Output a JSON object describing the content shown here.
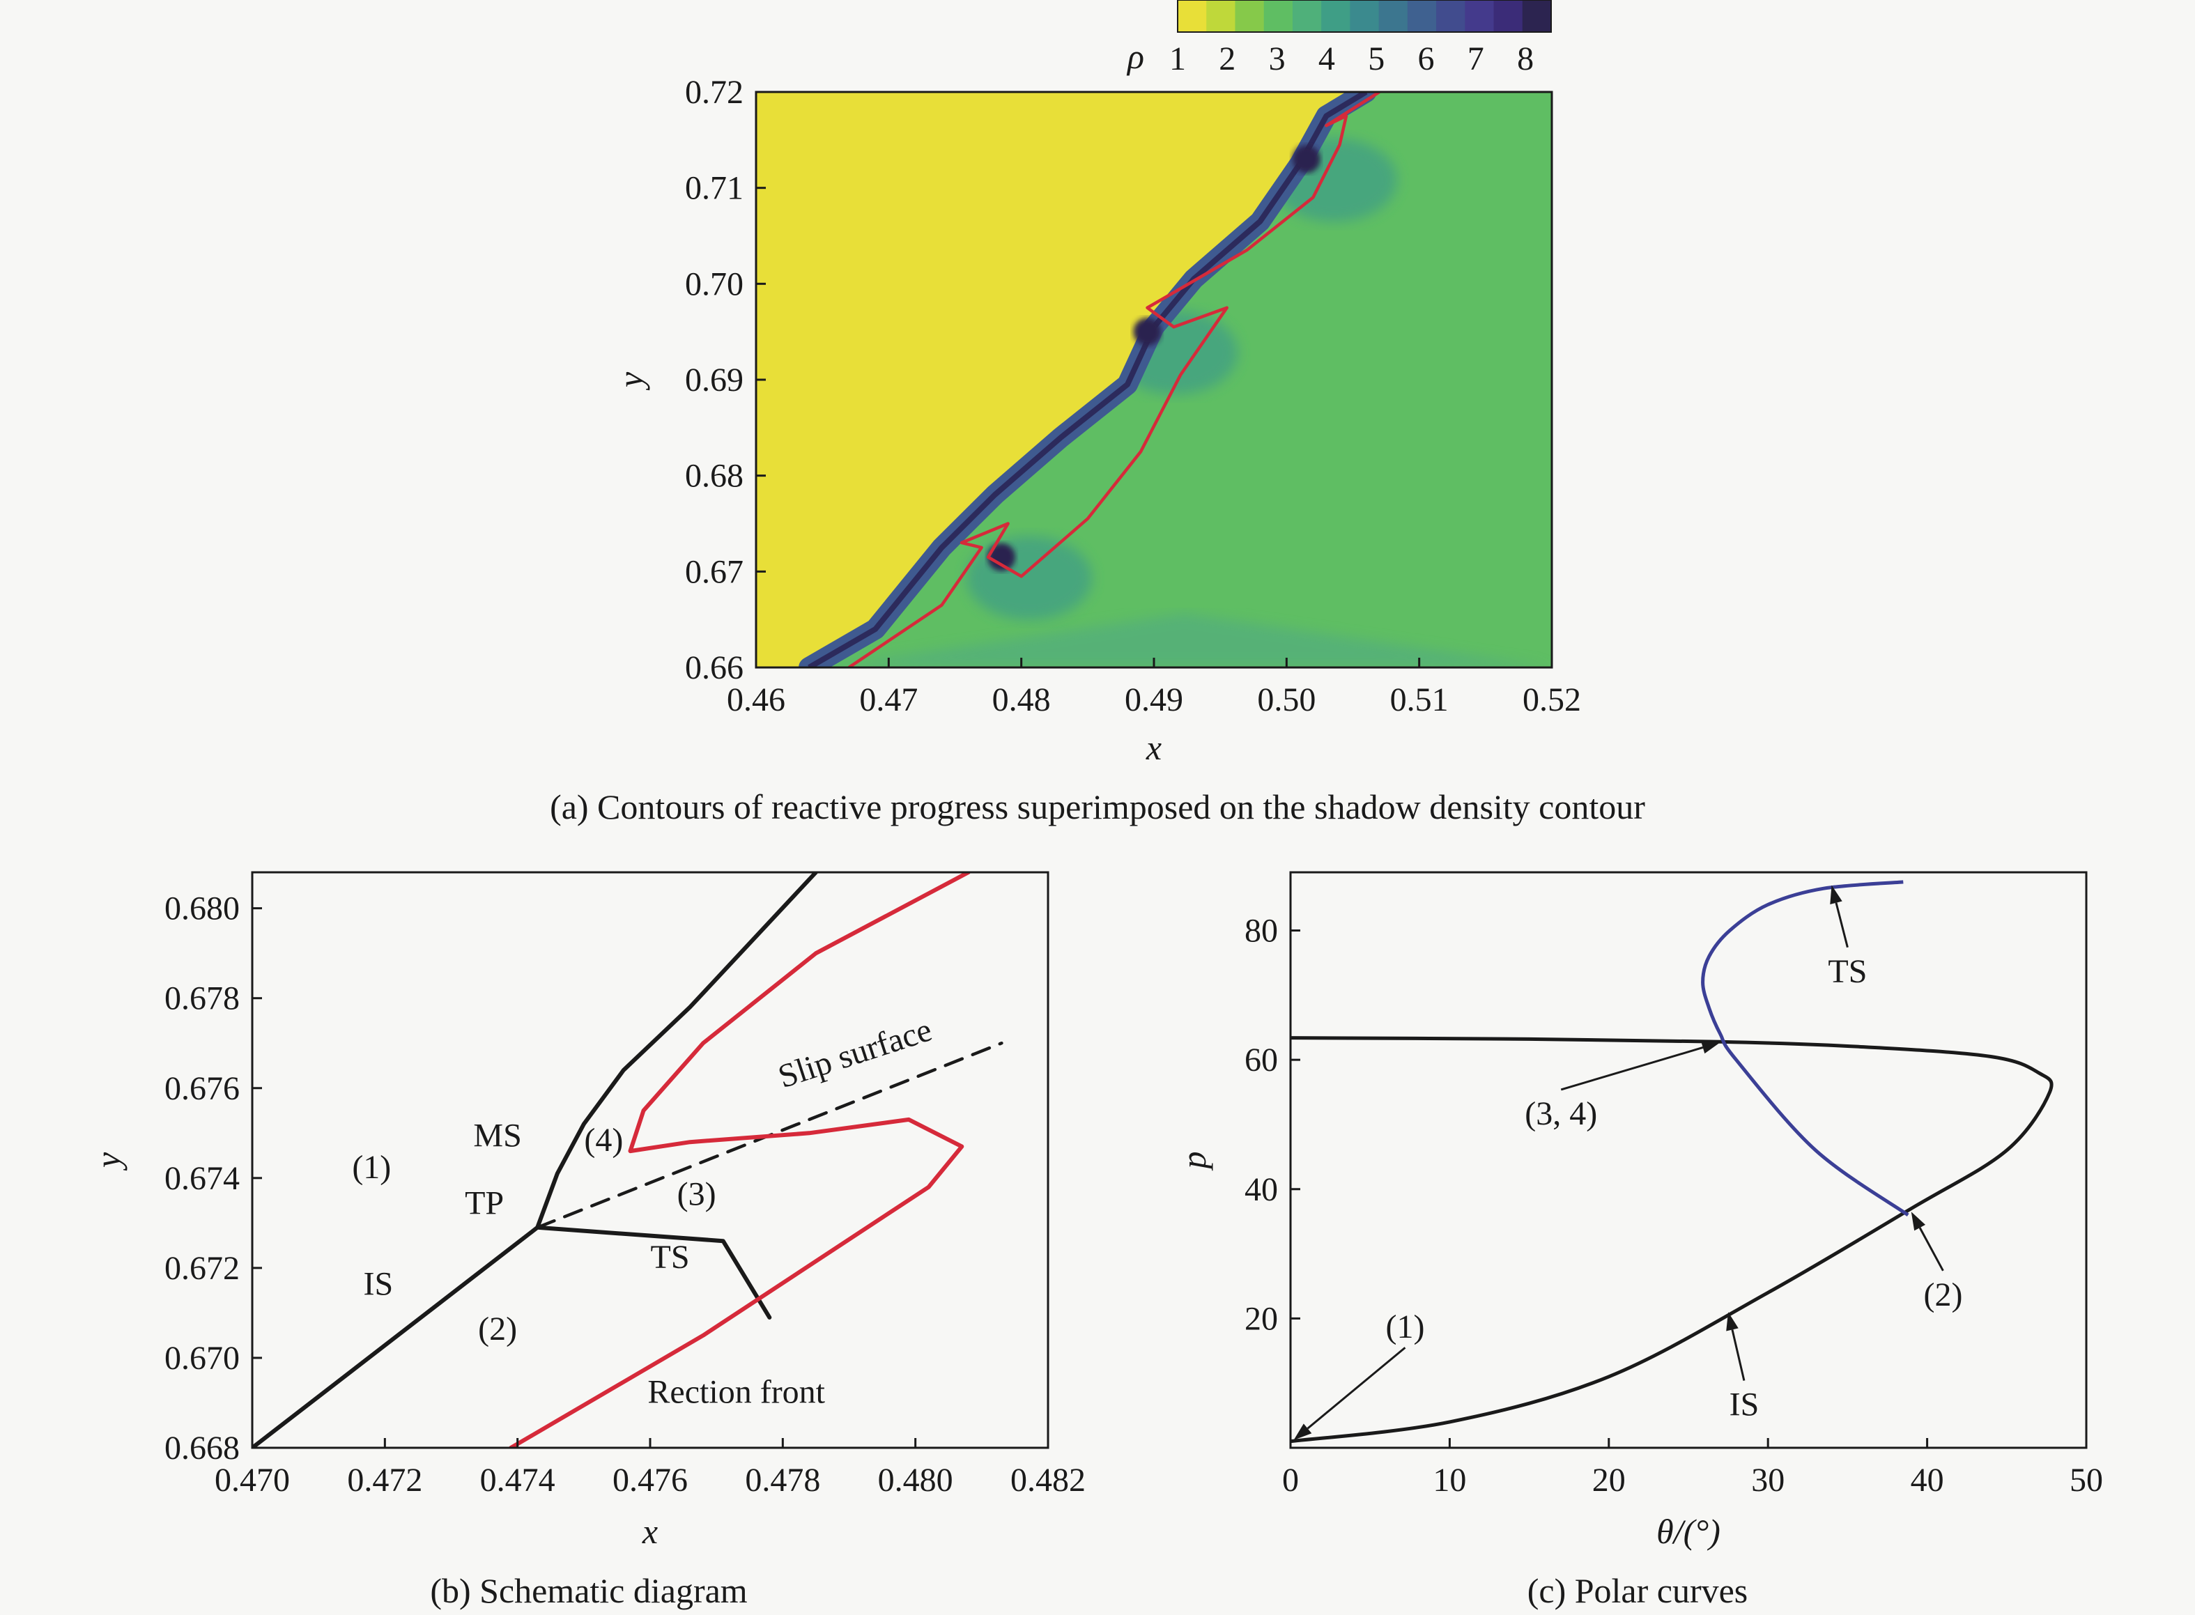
{
  "colorbar": {
    "symbol": "ρ",
    "ticks": [
      "1",
      "2",
      "3",
      "4",
      "5",
      "6",
      "7",
      "8"
    ],
    "colors": [
      "#e8df38",
      "#bfd83a",
      "#86c94a",
      "#5fbe63",
      "#4fb07a",
      "#3f9e86",
      "#3b8a8e",
      "#3c768f",
      "#3f6190",
      "#414c8e",
      "#443a8c",
      "#3b2c78",
      "#2c2450"
    ]
  },
  "chart_data": [
    {
      "type": "heatmap",
      "title": "",
      "caption": "(a) Contours of reactive progress superimposed on the shadow density contour",
      "xlabel": "x",
      "ylabel": "y",
      "xlim": [
        0.46,
        0.52
      ],
      "ylim": [
        0.66,
        0.72
      ],
      "xticks": [
        "0.46",
        "0.47",
        "0.48",
        "0.49",
        "0.50",
        "0.51",
        "0.52"
      ],
      "yticks": [
        "0.66",
        "0.67",
        "0.68",
        "0.69",
        "0.70",
        "0.71",
        "0.72"
      ],
      "colors": {
        "unburnt": "#e8df38",
        "burnt": "#5fbe63",
        "shock": "#414c8e",
        "reaction": "#d62a3a"
      },
      "shock_front": [
        [
          0.464,
          0.66
        ],
        [
          0.469,
          0.664
        ],
        [
          0.474,
          0.6725
        ],
        [
          0.478,
          0.678
        ],
        [
          0.483,
          0.684
        ],
        [
          0.488,
          0.6895
        ],
        [
          0.49,
          0.6955
        ],
        [
          0.493,
          0.7005
        ],
        [
          0.498,
          0.7065
        ],
        [
          0.501,
          0.7125
        ],
        [
          0.503,
          0.7175
        ],
        [
          0.506,
          0.72
        ]
      ],
      "reaction_front": [
        [
          0.467,
          0.66
        ],
        [
          0.474,
          0.6665
        ],
        [
          0.477,
          0.6725
        ],
        [
          0.4755,
          0.673
        ],
        [
          0.479,
          0.675
        ],
        [
          0.4775,
          0.6715
        ],
        [
          0.48,
          0.6695
        ],
        [
          0.485,
          0.6755
        ],
        [
          0.489,
          0.6825
        ],
        [
          0.492,
          0.6905
        ],
        [
          0.4955,
          0.6975
        ],
        [
          0.4915,
          0.6955
        ],
        [
          0.4895,
          0.6975
        ],
        [
          0.497,
          0.7035
        ],
        [
          0.502,
          0.709
        ],
        [
          0.504,
          0.7145
        ],
        [
          0.5045,
          0.7175
        ],
        [
          0.503,
          0.7165
        ],
        [
          0.507,
          0.72
        ]
      ],
      "triple_points": [
        [
          0.4785,
          0.6715
        ],
        [
          0.4895,
          0.695
        ],
        [
          0.5015,
          0.713
        ]
      ]
    },
    {
      "type": "line",
      "title": "",
      "caption": "(b) Schematic diagram",
      "xlabel": "x",
      "ylabel": "y",
      "xlim": [
        0.47,
        0.482
      ],
      "ylim": [
        0.668,
        0.6808
      ],
      "xticks": [
        "0.470",
        "0.472",
        "0.474",
        "0.476",
        "0.478",
        "0.480",
        "0.482"
      ],
      "yticks": [
        "0.668",
        "0.670",
        "0.672",
        "0.674",
        "0.676",
        "0.678",
        "0.680"
      ],
      "series": [
        {
          "key": "IS",
          "color": "#1a1a1a",
          "dash": false,
          "points": [
            [
              0.47,
              0.668
            ],
            [
              0.4743,
              0.6729
            ]
          ]
        },
        {
          "key": "MS",
          "color": "#1a1a1a",
          "dash": false,
          "points": [
            [
              0.4743,
              0.6729
            ],
            [
              0.4746,
              0.6741
            ],
            [
              0.475,
              0.6752
            ],
            [
              0.4756,
              0.6764
            ],
            [
              0.4766,
              0.6778
            ],
            [
              0.4785,
              0.6808
            ]
          ]
        },
        {
          "key": "TS",
          "color": "#1a1a1a",
          "dash": false,
          "points": [
            [
              0.4743,
              0.6729
            ],
            [
              0.4771,
              0.6726
            ],
            [
              0.4778,
              0.6709
            ]
          ]
        },
        {
          "key": "slip",
          "color": "#1a1a1a",
          "dash": true,
          "points": [
            [
              0.4743,
              0.6729
            ],
            [
              0.4813,
              0.677
            ]
          ]
        },
        {
          "key": "reaction",
          "color": "#d62a3a",
          "dash": false,
          "points": [
            [
              0.4739,
              0.668
            ],
            [
              0.4768,
              0.6705
            ],
            [
              0.4802,
              0.6738
            ],
            [
              0.4807,
              0.6747
            ],
            [
              0.4799,
              0.6753
            ],
            [
              0.4784,
              0.675
            ],
            [
              0.4766,
              0.6748
            ],
            [
              0.4757,
              0.6746
            ],
            [
              0.4759,
              0.6755
            ],
            [
              0.4768,
              0.677
            ],
            [
              0.4785,
              0.679
            ],
            [
              0.4808,
              0.6808
            ]
          ]
        }
      ],
      "annotations": [
        {
          "text": "(1)",
          "x": 0.4718,
          "y": 0.674
        },
        {
          "text": "MS",
          "x": 0.4737,
          "y": 0.6747
        },
        {
          "text": "(4)",
          "x": 0.4753,
          "y": 0.6746
        },
        {
          "text": "(3)",
          "x": 0.4767,
          "y": 0.6734
        },
        {
          "text": "TP",
          "x": 0.4735,
          "y": 0.6732
        },
        {
          "text": "TS",
          "x": 0.4763,
          "y": 0.672
        },
        {
          "text": "IS",
          "x": 0.4719,
          "y": 0.6714
        },
        {
          "text": "(2)",
          "x": 0.4737,
          "y": 0.6704
        },
        {
          "text": "Rection front",
          "x": 0.4773,
          "y": 0.669
        },
        {
          "text": "Slip surface",
          "x": 0.478,
          "y": 0.676
        }
      ]
    },
    {
      "type": "line",
      "title": "",
      "caption": "(c) Polar curves",
      "xlabel": "θ/(°)",
      "ylabel": "p",
      "xlim": [
        0,
        50
      ],
      "ylim": [
        0,
        89
      ],
      "xticks": [
        "0",
        "10",
        "20",
        "30",
        "40",
        "50"
      ],
      "yticks": [
        "20",
        "40",
        "60",
        "80"
      ],
      "series": [
        {
          "key": "IS polar",
          "color": "#1a1a1a",
          "points": [
            [
              0,
              1
            ],
            [
              10,
              4
            ],
            [
              20,
              11
            ],
            [
              30,
              24
            ],
            [
              39,
              37
            ],
            [
              45,
              46
            ],
            [
              47.7,
              55
            ],
            [
              47,
              58
            ],
            [
              44,
              60.5
            ],
            [
              36,
              62
            ],
            [
              27,
              62.8
            ],
            [
              15,
              63.2
            ],
            [
              0,
              63.4
            ]
          ]
        },
        {
          "key": "TS polar",
          "color": "#3b3f96",
          "points": [
            [
              38.8,
              36
            ],
            [
              33,
              46
            ],
            [
              28,
              60
            ],
            [
              27,
              64
            ],
            [
              26.3,
              68
            ],
            [
              25.9,
              72
            ],
            [
              26.3,
              76
            ],
            [
              27.6,
              80
            ],
            [
              30,
              84
            ],
            [
              33.5,
              86.5
            ],
            [
              38.5,
              87.5
            ]
          ]
        }
      ],
      "annotations": [
        {
          "text": "(1)",
          "x": 7.2,
          "y": 17
        },
        {
          "text": "(3, 4)",
          "x": 17,
          "y": 50
        },
        {
          "text": "TS",
          "x": 35,
          "y": 72
        },
        {
          "text": "(2)",
          "x": 41,
          "y": 22
        },
        {
          "text": "IS",
          "x": 28.5,
          "y": 5
        }
      ]
    }
  ]
}
